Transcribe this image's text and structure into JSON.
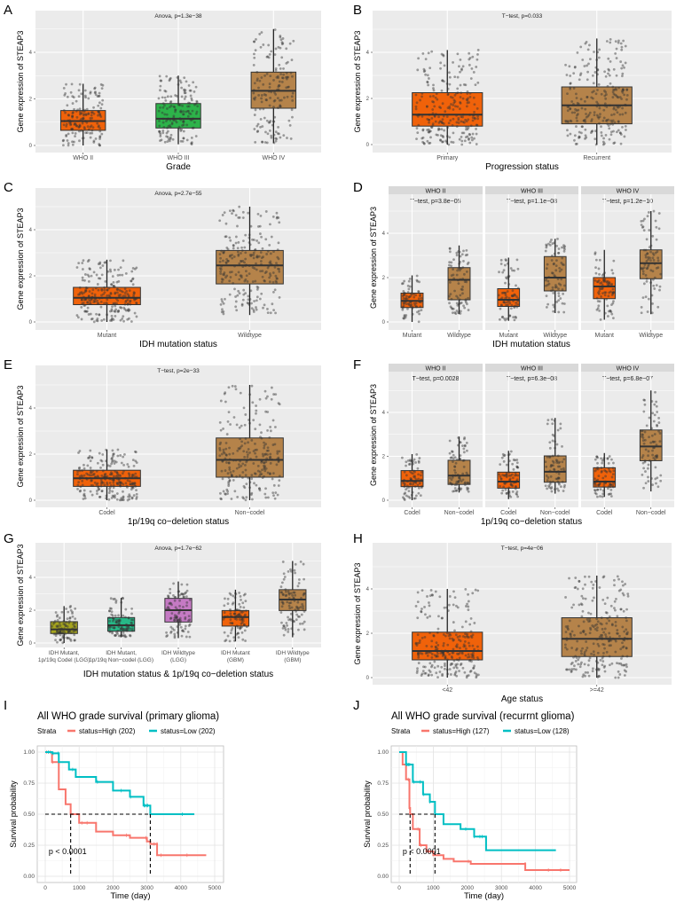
{
  "chart_data": [
    {
      "label": "A",
      "type": "box",
      "title": "",
      "test": "Anova, p=1.3e−38",
      "ylabel": "Gene expression of STEAP3",
      "xlabel": "Grade",
      "yticks": [
        0,
        2,
        4
      ],
      "facets": [
        {
          "title": "",
          "test": "",
          "groups": [
            {
              "name": "WHO II",
              "min": 0,
              "q1": 0.65,
              "median": 1.05,
              "q3": 1.5,
              "max": 2.65,
              "color": "#F0620A"
            },
            {
              "name": "WHO III",
              "min": 0.05,
              "q1": 0.75,
              "median": 1.15,
              "q3": 1.8,
              "max": 3.0,
              "color": "#2DB34A"
            },
            {
              "name": "WHO IV",
              "min": 0.1,
              "q1": 1.6,
              "median": 2.35,
              "q3": 3.15,
              "max": 5.0,
              "color": "#B5834A"
            }
          ]
        }
      ]
    },
    {
      "label": "B",
      "type": "box",
      "title": "",
      "test": "T−test, p=0.033",
      "ylabel": "Gene expression of STEAP3",
      "xlabel": "Progression status",
      "yticks": [
        0,
        2,
        4
      ],
      "facets": [
        {
          "title": "",
          "test": "",
          "groups": [
            {
              "name": "Primary",
              "min": 0,
              "q1": 0.8,
              "median": 1.3,
              "q3": 2.25,
              "max": 4.1,
              "color": "#F0620A"
            },
            {
              "name": "Recurrent",
              "min": 0,
              "q1": 0.9,
              "median": 1.7,
              "q3": 2.5,
              "max": 4.6,
              "color": "#B5834A"
            }
          ]
        }
      ]
    },
    {
      "label": "C",
      "type": "box",
      "title": "",
      "test": "Anova, p=2.7e−55",
      "ylabel": "Gene expression of STEAP3",
      "xlabel": "IDH mutation status",
      "yticks": [
        0,
        2,
        4
      ],
      "facets": [
        {
          "title": "",
          "test": "",
          "groups": [
            {
              "name": "Mutant",
              "min": 0,
              "q1": 0.75,
              "median": 1.05,
              "q3": 1.5,
              "max": 2.7,
              "color": "#F0620A"
            },
            {
              "name": "Wildtype",
              "min": 0.3,
              "q1": 1.65,
              "median": 2.45,
              "q3": 3.1,
              "max": 5.0,
              "color": "#B5834A"
            }
          ]
        }
      ]
    },
    {
      "label": "D",
      "type": "box",
      "title": "",
      "test": "",
      "ylabel": "Gene expression of STEAP3",
      "xlabel": "IDH mutation status",
      "yticks": [
        0,
        2,
        4
      ],
      "facets": [
        {
          "title": "WHO II",
          "test": "T−test, p=3.8e−05",
          "groups": [
            {
              "name": "Mutant",
              "min": 0,
              "q1": 0.65,
              "median": 0.95,
              "q3": 1.3,
              "max": 2.1,
              "color": "#F0620A"
            },
            {
              "name": "Wildtype",
              "min": 0.35,
              "q1": 1.0,
              "median": 1.9,
              "q3": 2.45,
              "max": 3.45,
              "color": "#B5834A"
            }
          ]
        },
        {
          "title": "WHO III",
          "test": "T−test, p=1.1e−08",
          "groups": [
            {
              "name": "Mutant",
              "min": 0.05,
              "q1": 0.7,
              "median": 1.0,
              "q3": 1.5,
              "max": 2.9,
              "color": "#F0620A"
            },
            {
              "name": "Wildtype",
              "min": 0.4,
              "q1": 1.4,
              "median": 2.0,
              "q3": 2.95,
              "max": 3.75,
              "color": "#B5834A"
            }
          ]
        },
        {
          "title": "WHO IV",
          "test": "T−test, p=1.2e−10",
          "groups": [
            {
              "name": "Mutant",
              "min": 0.1,
              "q1": 1.05,
              "median": 1.6,
              "q3": 2.0,
              "max": 3.25,
              "color": "#F0620A"
            },
            {
              "name": "Wildtype",
              "min": 0.35,
              "q1": 1.95,
              "median": 2.65,
              "q3": 3.25,
              "max": 5.0,
              "color": "#B5834A"
            }
          ]
        }
      ]
    },
    {
      "label": "E",
      "type": "box",
      "title": "",
      "test": "T−test, p=2e−33",
      "ylabel": "Gene expression of STEAP3",
      "xlabel": "1p/19q co−deletion status",
      "yticks": [
        0,
        2,
        4
      ],
      "facets": [
        {
          "title": "",
          "test": "",
          "groups": [
            {
              "name": "Codel",
              "min": 0,
              "q1": 0.6,
              "median": 0.95,
              "q3": 1.3,
              "max": 2.2,
              "color": "#F0620A"
            },
            {
              "name": "Non−codel",
              "min": 0,
              "q1": 1.0,
              "median": 1.75,
              "q3": 2.7,
              "max": 5.0,
              "color": "#B5834A"
            }
          ]
        }
      ]
    },
    {
      "label": "F",
      "type": "box",
      "title": "",
      "test": "",
      "ylabel": "Gene expression of STEAP3",
      "xlabel": "1p/19q co−deletion status",
      "yticks": [
        0,
        2,
        4
      ],
      "facets": [
        {
          "title": "WHO II",
          "test": "T−test, p=0.0028",
          "groups": [
            {
              "name": "Codel",
              "min": 0,
              "q1": 0.62,
              "median": 0.88,
              "q3": 1.35,
              "max": 2.1,
              "color": "#F0620A"
            },
            {
              "name": "Non−codel",
              "min": 0.35,
              "q1": 0.72,
              "median": 1.12,
              "q3": 1.82,
              "max": 2.9,
              "color": "#B5834A"
            }
          ]
        },
        {
          "title": "WHO III",
          "test": "T−test, p=6.3e−08",
          "groups": [
            {
              "name": "Codel",
              "min": 0.05,
              "q1": 0.55,
              "median": 0.85,
              "q3": 1.28,
              "max": 2.25,
              "color": "#F0620A"
            },
            {
              "name": "Non−codel",
              "min": 0.3,
              "q1": 0.82,
              "median": 1.3,
              "q3": 2.02,
              "max": 3.75,
              "color": "#B5834A"
            }
          ]
        },
        {
          "title": "WHO IV",
          "test": "T−test, p=6.8e−07",
          "groups": [
            {
              "name": "Codel",
              "min": 0.15,
              "q1": 0.6,
              "median": 0.85,
              "q3": 1.48,
              "max": 2.15,
              "color": "#F0620A"
            },
            {
              "name": "Non−codel",
              "min": 0.4,
              "q1": 1.8,
              "median": 2.45,
              "q3": 3.2,
              "max": 5.0,
              "color": "#B5834A"
            }
          ]
        }
      ]
    },
    {
      "label": "G",
      "type": "box",
      "title": "",
      "test": "Anova, p=1.7e−62",
      "ylabel": "Gene expression of STEAP3",
      "xlabel": "IDH mutation status & 1p/19q co−deletion status",
      "yticks": [
        0,
        2,
        4
      ],
      "facets": [
        {
          "title": "",
          "test": "",
          "groups": [
            {
              "name": "IDH Mutant,|1p/19q Codel (LGG)",
              "min": 0,
              "q1": 0.58,
              "median": 0.83,
              "q3": 1.3,
              "max": 2.25,
              "color": "#A6A51E"
            },
            {
              "name": "IDH Mutant,|1p/19q Non−codel (LGG)",
              "min": 0.35,
              "q1": 0.72,
              "median": 1.08,
              "q3": 1.55,
              "max": 2.75,
              "color": "#27B887"
            },
            {
              "name": "IDH Wildtype|(LGG)",
              "min": 0.3,
              "q1": 1.28,
              "median": 2.0,
              "q3": 2.72,
              "max": 3.75,
              "color": "#C57AC4"
            },
            {
              "name": "IDH Mutant|(GBM)",
              "min": 0.1,
              "q1": 1.03,
              "median": 1.58,
              "q3": 1.98,
              "max": 3.25,
              "color": "#F0620A"
            },
            {
              "name": "IDH Wildtype|(GBM)",
              "min": 0.35,
              "q1": 1.98,
              "median": 2.65,
              "q3": 3.25,
              "max": 5.0,
              "color": "#B5834A"
            }
          ]
        }
      ]
    },
    {
      "label": "H",
      "type": "box",
      "title": "",
      "test": "T−test, p=4e−06",
      "ylabel": "Gene expression of STEAP3",
      "xlabel": "Age status",
      "yticks": [
        0,
        2,
        4
      ],
      "facets": [
        {
          "title": "",
          "test": "",
          "groups": [
            {
              "name": "<42",
              "min": 0,
              "q1": 0.8,
              "median": 1.2,
              "q3": 2.05,
              "max": 4.0,
              "color": "#F0620A"
            },
            {
              "name": ">=42",
              "min": 0,
              "q1": 0.95,
              "median": 1.75,
              "q3": 2.7,
              "max": 4.6,
              "color": "#B5834A"
            }
          ]
        }
      ]
    },
    {
      "label": "I",
      "type": "line",
      "subtype": "kaplan-meier",
      "title": "All WHO grade survival (primary glioma)",
      "legend_title": "Strata",
      "ylabel": "Survival probability",
      "xlabel": "Time (day)",
      "pvalue": "p < 0.0001",
      "xlim": [
        0,
        5000
      ],
      "ylim": [
        0,
        1
      ],
      "xticks": [
        0,
        1000,
        2000,
        3000,
        4000,
        5000
      ],
      "yticks": [
        "0.00",
        "0.25",
        "0.50",
        "0.75",
        "1.00"
      ],
      "series": [
        {
          "name": "status=High (202)",
          "color": "#F8766D",
          "median": 750,
          "points": [
            [
              0,
              1
            ],
            [
              200,
              0.92
            ],
            [
              400,
              0.7
            ],
            [
              600,
              0.58
            ],
            [
              750,
              0.5
            ],
            [
              1000,
              0.43
            ],
            [
              1500,
              0.36
            ],
            [
              2000,
              0.33
            ],
            [
              2500,
              0.31
            ],
            [
              3000,
              0.28
            ],
            [
              3100,
              0.26
            ],
            [
              3300,
              0.26
            ],
            [
              3300,
              0.17
            ],
            [
              4750,
              0.17
            ]
          ]
        },
        {
          "name": "status=Low (202)",
          "color": "#00BFC4",
          "median": 3100,
          "points": [
            [
              0,
              1
            ],
            [
              200,
              0.99
            ],
            [
              400,
              0.92
            ],
            [
              700,
              0.86
            ],
            [
              900,
              0.8
            ],
            [
              1500,
              0.76
            ],
            [
              2000,
              0.69
            ],
            [
              2500,
              0.64
            ],
            [
              2900,
              0.57
            ],
            [
              3100,
              0.5
            ],
            [
              4400,
              0.5
            ]
          ]
        }
      ]
    },
    {
      "label": "J",
      "type": "line",
      "subtype": "kaplan-meier",
      "title": "All WHO grade survival (recurrnt glioma)",
      "legend_title": "Strata",
      "ylabel": "Survival probability",
      "xlabel": "Time (day)",
      "pvalue": "p < 0.0001",
      "xlim": [
        0,
        5000
      ],
      "ylim": [
        0,
        1
      ],
      "xticks": [
        0,
        1000,
        2000,
        3000,
        4000,
        5000
      ],
      "yticks": [
        "0.00",
        "0.25",
        "0.50",
        "0.75",
        "1.00"
      ],
      "series": [
        {
          "name": "status=High (127)",
          "color": "#F8766D",
          "median": 320,
          "points": [
            [
              0,
              1
            ],
            [
              100,
              0.9
            ],
            [
              200,
              0.78
            ],
            [
              300,
              0.55
            ],
            [
              320,
              0.5
            ],
            [
              400,
              0.38
            ],
            [
              600,
              0.25
            ],
            [
              800,
              0.2
            ],
            [
              1000,
              0.17
            ],
            [
              1300,
              0.14
            ],
            [
              1600,
              0.12
            ],
            [
              2100,
              0.1
            ],
            [
              3700,
              0.1
            ],
            [
              3700,
              0.05
            ],
            [
              5000,
              0.05
            ]
          ]
        },
        {
          "name": "status=Low (128)",
          "color": "#00BFC4",
          "median": 1050,
          "points": [
            [
              0,
              1
            ],
            [
              200,
              0.9
            ],
            [
              400,
              0.76
            ],
            [
              700,
              0.66
            ],
            [
              900,
              0.6
            ],
            [
              1050,
              0.5
            ],
            [
              1300,
              0.42
            ],
            [
              1800,
              0.38
            ],
            [
              2200,
              0.32
            ],
            [
              2550,
              0.21
            ],
            [
              4600,
              0.21
            ]
          ]
        }
      ]
    }
  ]
}
